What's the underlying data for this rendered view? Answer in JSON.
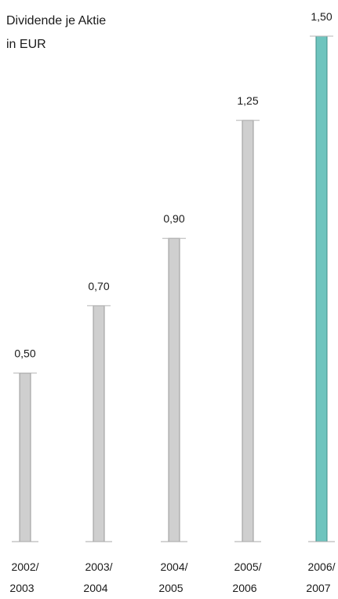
{
  "chart_data": {
    "type": "bar",
    "title": [
      "Dividende je Aktie",
      "in EUR"
    ],
    "categories": [
      [
        "2002/",
        "2003"
      ],
      [
        "2003/",
        "2004"
      ],
      [
        "2004/",
        "2005"
      ],
      [
        "2005/",
        "2006"
      ],
      [
        "2006/",
        "2007"
      ]
    ],
    "values": [
      0.5,
      0.7,
      0.9,
      1.25,
      1.5
    ],
    "value_labels": [
      "0,50",
      "0,70",
      "0,90",
      "1,25",
      "1,50"
    ],
    "ylim": [
      0,
      1.5
    ],
    "grid": false,
    "legend": "none",
    "colors": {
      "bar_default": "#cfcfcf",
      "bar_default_edge": "#9a9a9a",
      "bar_highlight": "#6ec4be",
      "bar_highlight_edge": "#3f8e88",
      "highlight_index": 4
    }
  }
}
